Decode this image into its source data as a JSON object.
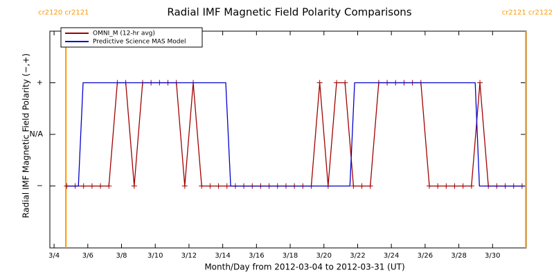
{
  "chart_data": {
    "type": "line",
    "title": "Radial IMF Magnetic Field Polarity Comparisons",
    "xlabel": "Month/Day from 2012-03-04 to 2012-03-31 (UT)",
    "ylabel": "Radial IMF Magnetic Field Polarity (−,+)",
    "xlim": [
      -0.25,
      28.0
    ],
    "ylim": [
      -2.2,
      2
    ],
    "xticks": [
      {
        "value": 0,
        "label": "3/4"
      },
      {
        "value": 2,
        "label": "3/6"
      },
      {
        "value": 4,
        "label": "3/8"
      },
      {
        "value": 6,
        "label": "3/10"
      },
      {
        "value": 8,
        "label": "3/12"
      },
      {
        "value": 10,
        "label": "3/14"
      },
      {
        "value": 12,
        "label": "3/16"
      },
      {
        "value": 14,
        "label": "3/18"
      },
      {
        "value": 16,
        "label": "3/20"
      },
      {
        "value": 18,
        "label": "3/22"
      },
      {
        "value": 20,
        "label": "3/24"
      },
      {
        "value": 22,
        "label": "3/26"
      },
      {
        "value": 24,
        "label": "3/28"
      },
      {
        "value": 26,
        "label": "3/30"
      }
    ],
    "yticks": [
      {
        "value": -1,
        "label": "−"
      },
      {
        "value": 0,
        "label": "N/A"
      },
      {
        "value": 1,
        "label": "+"
      }
    ],
    "legend": "upper left",
    "annotations": [
      {
        "x": 0.7,
        "label": "cr2120 cr2121",
        "color": "#ff9900"
      },
      {
        "x": 27.97,
        "label": "cr2121 cr2122",
        "color": "#ff9900"
      }
    ],
    "series": [
      {
        "name": "OMNI_M (12-hr avg)",
        "color": "#a00000",
        "markers": true,
        "x": [
          0.75,
          1.25,
          1.75,
          2.25,
          2.75,
          3.25,
          3.75,
          4.25,
          4.75,
          5.25,
          5.75,
          6.25,
          6.75,
          7.25,
          7.75,
          8.25,
          8.75,
          9.25,
          9.75,
          10.25,
          10.75,
          11.25,
          11.75,
          12.25,
          12.75,
          13.25,
          13.75,
          14.25,
          14.75,
          15.25,
          15.75,
          16.25,
          16.75,
          17.25,
          17.75,
          18.25,
          18.75,
          19.25,
          19.75,
          20.25,
          20.75,
          21.25,
          21.75,
          22.25,
          22.75,
          23.25,
          23.75,
          24.25,
          24.75,
          25.25,
          25.75,
          26.25,
          26.75,
          27.25,
          27.75
        ],
        "values": [
          -1,
          -1,
          -1,
          -1,
          -1,
          -1,
          1,
          1,
          -1,
          1,
          1,
          1,
          1,
          1,
          -1,
          1,
          -1,
          -1,
          -1,
          -1,
          -1,
          -1,
          -1,
          -1,
          -1,
          -1,
          -1,
          -1,
          -1,
          -1,
          1,
          -1,
          1,
          1,
          -1,
          -1,
          -1,
          1,
          1,
          1,
          1,
          1,
          1,
          -1,
          -1,
          -1,
          -1,
          -1,
          -1,
          1,
          -1,
          -1,
          -1,
          -1,
          -1
        ]
      },
      {
        "name": "Predictive Science MAS Model",
        "color": "#0000cc",
        "markers": false,
        "x": [
          0.75,
          1.44,
          1.72,
          10.18,
          10.47,
          17.54,
          17.82,
          24.97,
          25.22,
          27.93
        ],
        "values": [
          -1,
          -1,
          1,
          1,
          -1,
          -1,
          1,
          1,
          -1,
          -1
        ]
      }
    ]
  }
}
